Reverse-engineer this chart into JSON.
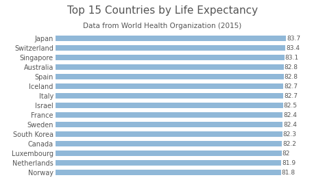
{
  "title": "Top 15 Countries by Life Expectancy",
  "subtitle": "Data from World Health Organization (2015)",
  "countries": [
    "Norway",
    "Netherlands",
    "Luxembourg",
    "Canada",
    "South Korea",
    "Sweden",
    "France",
    "Israel",
    "Italy",
    "Iceland",
    "Spain",
    "Australia",
    "Singapore",
    "Switzerland",
    "Japan"
  ],
  "values": [
    81.8,
    81.9,
    82.0,
    82.2,
    82.3,
    82.4,
    82.4,
    82.5,
    82.7,
    82.7,
    82.8,
    82.8,
    83.1,
    83.4,
    83.7
  ],
  "value_labels": [
    "81.8",
    "81.9",
    "82",
    "82.2",
    "82.3",
    "82.4",
    "82.4",
    "82.5",
    "82.7",
    "82.7",
    "82.8",
    "82.8",
    "83.1",
    "83.4",
    "83.7"
  ],
  "bar_color": "#90b8d8",
  "background_color": "#ffffff",
  "text_color": "#555555",
  "title_fontsize": 11,
  "subtitle_fontsize": 7.5,
  "label_fontsize": 7,
  "value_fontsize": 6.5,
  "xlim": [
    0,
    86
  ],
  "bar_height": 0.55
}
